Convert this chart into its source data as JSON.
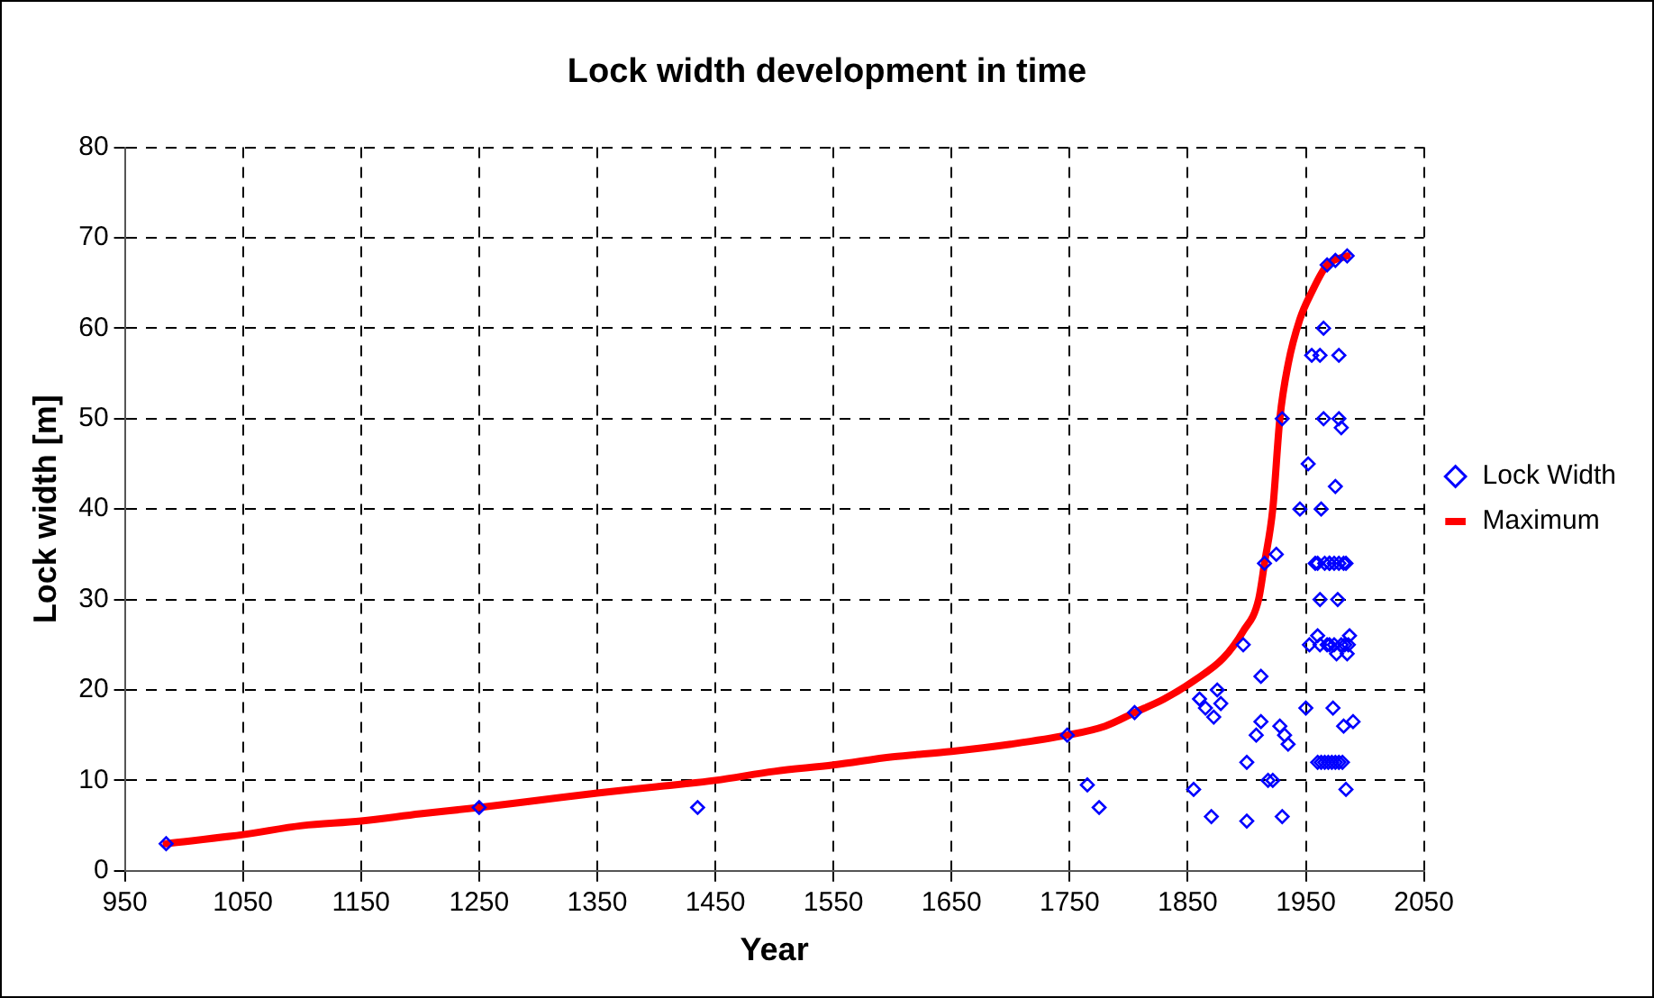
{
  "chart_data": {
    "type": "scatter",
    "title": "Lock width development in time",
    "xlabel": "Year",
    "ylabel": "Lock width [m]",
    "xlim": [
      950,
      2050
    ],
    "xticks": [
      950,
      1050,
      1150,
      1250,
      1350,
      1450,
      1550,
      1650,
      1750,
      1850,
      1950,
      2050
    ],
    "ylim": [
      0,
      80
    ],
    "yticks": [
      0,
      10,
      20,
      30,
      40,
      50,
      60,
      70,
      80
    ],
    "grid": true,
    "legend": "right",
    "series": [
      {
        "name": "Lock Width",
        "marker": "diamond",
        "color": "#0000ff",
        "x": [
          985,
          1250,
          1435,
          1748,
          1765,
          1775,
          1805,
          1855,
          1860,
          1865,
          1870,
          1872,
          1875,
          1878,
          1897,
          1900,
          1900,
          1908,
          1912,
          1912,
          1915,
          1918,
          1922,
          1925,
          1928,
          1930,
          1930,
          1932,
          1935,
          1945,
          1950,
          1952,
          1953,
          1955,
          1958,
          1960,
          1962,
          1962,
          1963,
          1965,
          1965,
          1968,
          1970,
          1970,
          1973,
          1975,
          1975,
          1976,
          1977,
          1978,
          1978,
          1980,
          1982,
          1982,
          1983,
          1984,
          1985,
          1985,
          1987,
          1990,
          1960,
          1963,
          1966,
          1969,
          1972,
          1975,
          1978,
          1981,
          1960,
          1966,
          1970,
          1974,
          1978,
          1984,
          1962,
          1968,
          1974,
          1980,
          1986
        ],
        "values": [
          3,
          7,
          7,
          15,
          9.5,
          7,
          17.5,
          9,
          19,
          18,
          6,
          17,
          20,
          18.5,
          25,
          5.5,
          12,
          15,
          21.5,
          16.5,
          34,
          10,
          10,
          35,
          16,
          50,
          6,
          15,
          14,
          40,
          18,
          45,
          25,
          57,
          34,
          26,
          30,
          57,
          40,
          60,
          50,
          67,
          34,
          25,
          18,
          67.5,
          42.5,
          24,
          30,
          57,
          50,
          49,
          16,
          34,
          25,
          9,
          68,
          24,
          26,
          16.5,
          12,
          12,
          12,
          12,
          12,
          12,
          12,
          12,
          34,
          34,
          34,
          34,
          34,
          34,
          25,
          25,
          25,
          25,
          25
        ]
      },
      {
        "name": "Maximum",
        "type": "line",
        "marker": "none",
        "line_style": "solid",
        "color": "#ff0000",
        "x": [
          985,
          1050,
          1100,
          1150,
          1200,
          1250,
          1300,
          1350,
          1400,
          1450,
          1500,
          1550,
          1600,
          1650,
          1700,
          1748,
          1780,
          1805,
          1830,
          1855,
          1880,
          1897,
          1910,
          1915,
          1922,
          1928,
          1935,
          1945,
          1955,
          1968,
          1985
        ],
        "values": [
          3,
          4,
          5,
          5.5,
          6.3,
          7,
          7.8,
          8.6,
          9.3,
          10,
          11,
          11.7,
          12.6,
          13.2,
          14,
          15,
          16,
          17.5,
          19,
          21,
          23.5,
          26.5,
          30,
          34,
          40,
          50,
          56,
          61,
          64,
          67,
          68
        ]
      }
    ]
  }
}
